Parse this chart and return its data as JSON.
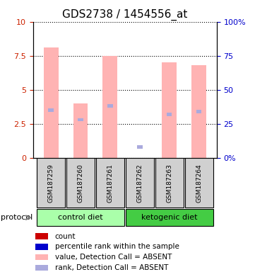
{
  "title": "GDS2738 / 1454556_at",
  "samples": [
    "GSM187259",
    "GSM187260",
    "GSM187261",
    "GSM187262",
    "GSM187263",
    "GSM187264"
  ],
  "bar_values": [
    8.1,
    4.0,
    7.5,
    0.0,
    7.0,
    6.8
  ],
  "rank_values": [
    3.5,
    2.8,
    3.8,
    0.8,
    3.2,
    3.4
  ],
  "bar_color": "#FFB3B3",
  "rank_color": "#AAAADD",
  "ylim_left": [
    0,
    10
  ],
  "ylim_right": [
    0,
    100
  ],
  "yticks_left": [
    0,
    2.5,
    5.0,
    7.5,
    10
  ],
  "yticks_right": [
    0,
    25,
    50,
    75,
    100
  ],
  "ytick_labels_left": [
    "0",
    "2.5",
    "5",
    "7.5",
    "10"
  ],
  "ytick_labels_right": [
    "0%",
    "25",
    "50",
    "75",
    "100%"
  ],
  "protocols": [
    {
      "label": "control diet",
      "samples": [
        0,
        1,
        2
      ],
      "color": "#AAFFAA"
    },
    {
      "label": "ketogenic diet",
      "samples": [
        3,
        4,
        5
      ],
      "color": "#44CC44"
    }
  ],
  "protocol_label": "protocol",
  "legend_items": [
    {
      "color": "#CC0000",
      "label": "count"
    },
    {
      "color": "#0000CC",
      "label": "percentile rank within the sample"
    },
    {
      "color": "#FFB3B3",
      "label": "value, Detection Call = ABSENT"
    },
    {
      "color": "#AAAADD",
      "label": "rank, Detection Call = ABSENT"
    }
  ]
}
